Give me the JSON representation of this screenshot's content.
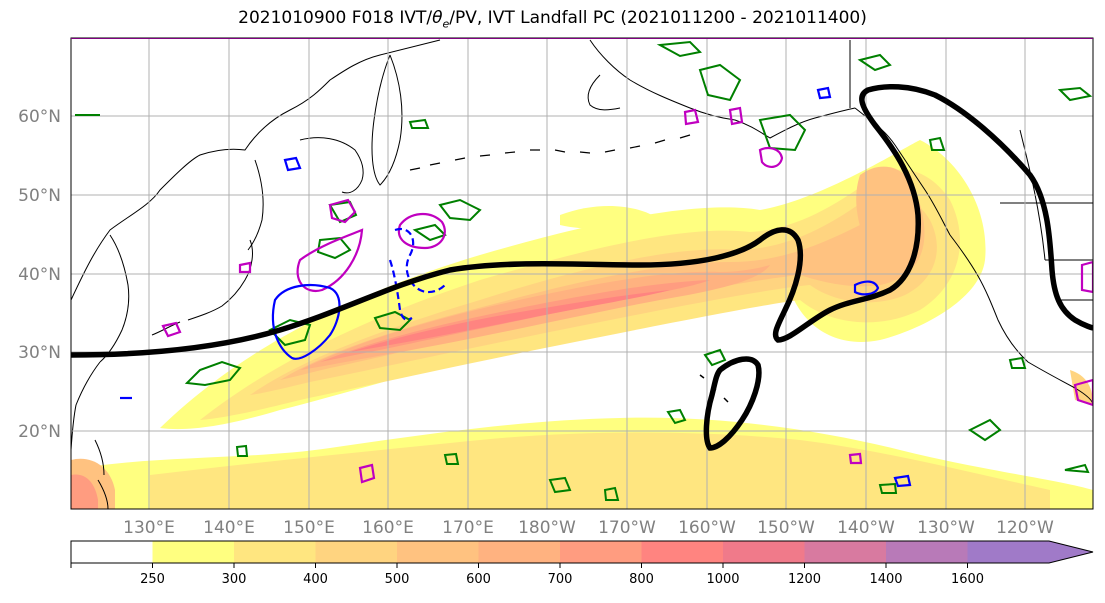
{
  "title_main": "2021010900 F018 IVT/",
  "title_theta": "θ",
  "title_theta_sub": "e",
  "title_rest": "/PV, IVT Landfall PC (2021011200 - 2021011400)",
  "lat_labels": [
    "60°N",
    "50°N",
    "40°N",
    "30°N",
    "20°N"
  ],
  "lon_labels": [
    "130°E",
    "140°E",
    "150°E",
    "160°E",
    "170°E",
    "180°W",
    "170°W",
    "160°W",
    "150°W",
    "140°W",
    "130°W",
    "120°W"
  ],
  "colorbar": {
    "ticks": [
      "250",
      "300",
      "400",
      "500",
      "600",
      "700",
      "800",
      "1000",
      "1200",
      "1400",
      "1600"
    ],
    "colors": [
      "#ffffff",
      "#ffff80",
      "#ffe680",
      "#ffd480",
      "#ffc280",
      "#ffb280",
      "#ff9c80",
      "#ff8480",
      "#f07a8a",
      "#d87aa0",
      "#b87ab8",
      "#a07ac8"
    ]
  },
  "contour_colors": {
    "ivt_landfall_pc": "#000000",
    "theta_e": "#008000",
    "pv_positive": "#c000c0",
    "pv_negative": "#0000ff"
  }
}
